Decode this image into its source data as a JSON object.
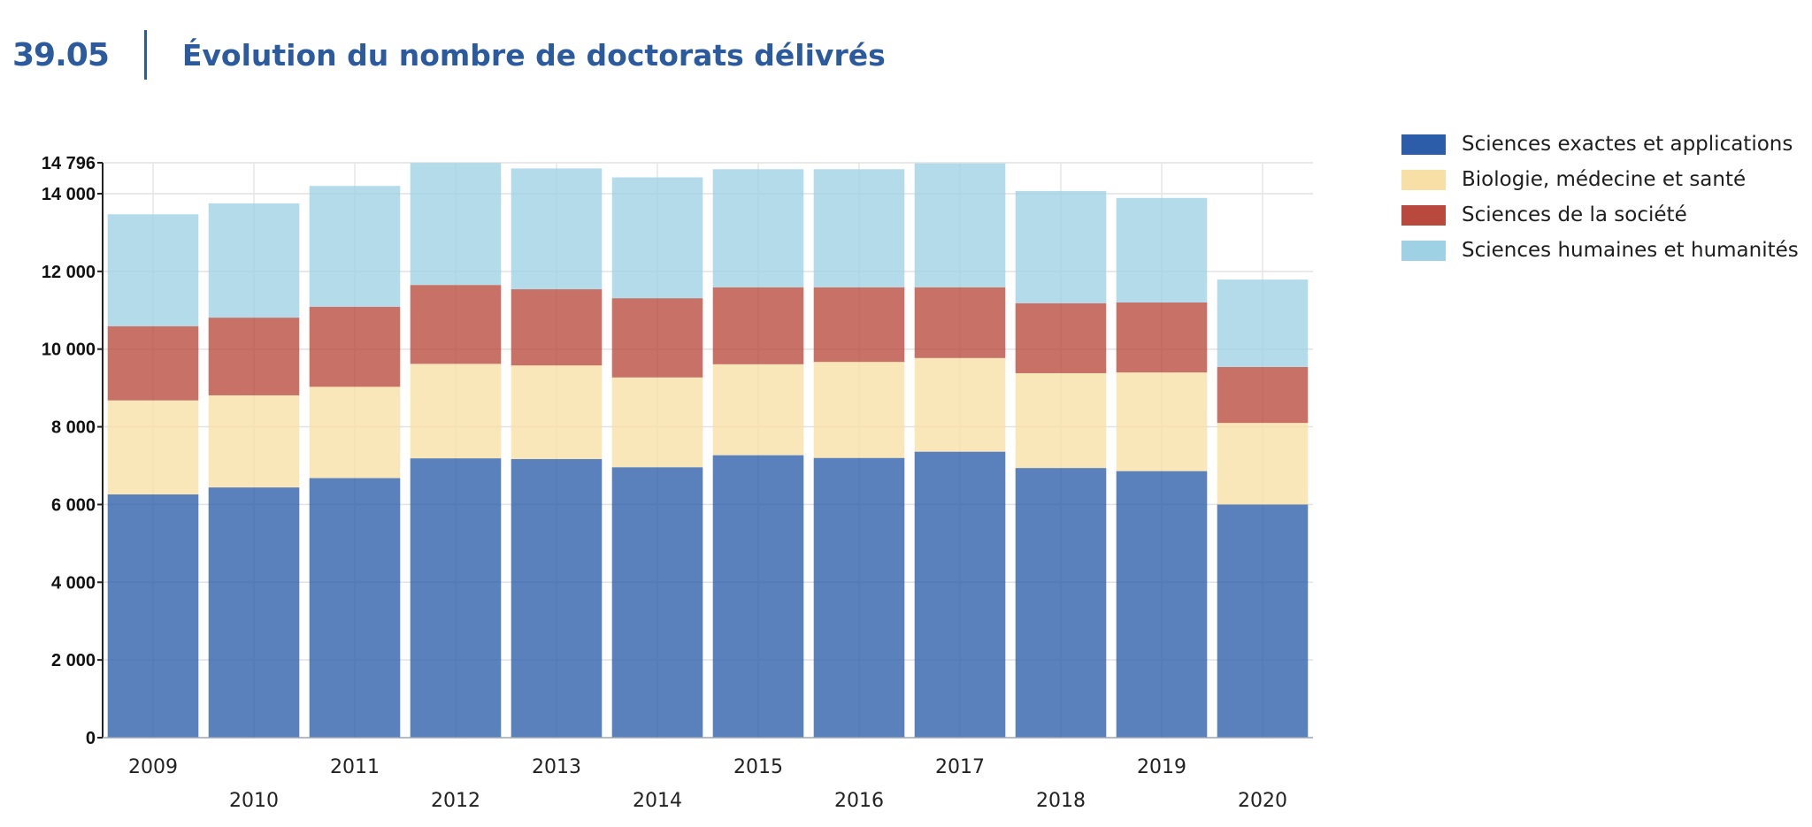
{
  "header": {
    "figure_number": "39.05",
    "title": "Évolution du nombre de doctorats délivrés"
  },
  "legend": [
    {
      "label": "Sciences exactes et applications",
      "color": "#2c5da8"
    },
    {
      "label": "Biologie, médecine et santé",
      "color": "#f7dfa5"
    },
    {
      "label": "Sciences de la société",
      "color": "#b8493c"
    },
    {
      "label": "Sciences humaines et humanités",
      "color": "#9fd1e4"
    }
  ],
  "chart_data": {
    "type": "bar",
    "stacked": true,
    "title": "Évolution du nombre de doctorats délivrés",
    "xlabel": "",
    "ylabel": "",
    "ylim": [
      0,
      14796
    ],
    "y_ticks": [
      0,
      2000,
      4000,
      6000,
      8000,
      10000,
      12000,
      14000,
      14796
    ],
    "y_tick_labels": [
      "0",
      "2 000",
      "4 000",
      "6 000",
      "8 000",
      "10 000",
      "12 000",
      "14 000",
      "14 796"
    ],
    "grid": true,
    "legend_position": "top-right",
    "categories": [
      "2009",
      "2010",
      "2011",
      "2012",
      "2013",
      "2014",
      "2015",
      "2016",
      "2017",
      "2018",
      "2019",
      "2020"
    ],
    "series": [
      {
        "name": "Sciences exactes et applications",
        "color": "#2c5da8",
        "values": [
          6260,
          6440,
          6680,
          7190,
          7170,
          6960,
          7270,
          7200,
          7360,
          6940,
          6860,
          6000
        ]
      },
      {
        "name": "Biologie, médecine et santé",
        "color": "#f7dfa5",
        "values": [
          2420,
          2370,
          2350,
          2430,
          2410,
          2310,
          2340,
          2470,
          2410,
          2440,
          2540,
          2100
        ]
      },
      {
        "name": "Sciences de la société",
        "color": "#b8493c",
        "values": [
          1910,
          2000,
          2060,
          2030,
          1960,
          2040,
          1980,
          1920,
          1820,
          1800,
          1800,
          1440
        ]
      },
      {
        "name": "Sciences humaines et humanités",
        "color": "#9fd1e4",
        "values": [
          2880,
          2940,
          3110,
          3140,
          3110,
          3110,
          3040,
          3040,
          3190,
          2890,
          2690,
          2250
        ]
      }
    ]
  }
}
